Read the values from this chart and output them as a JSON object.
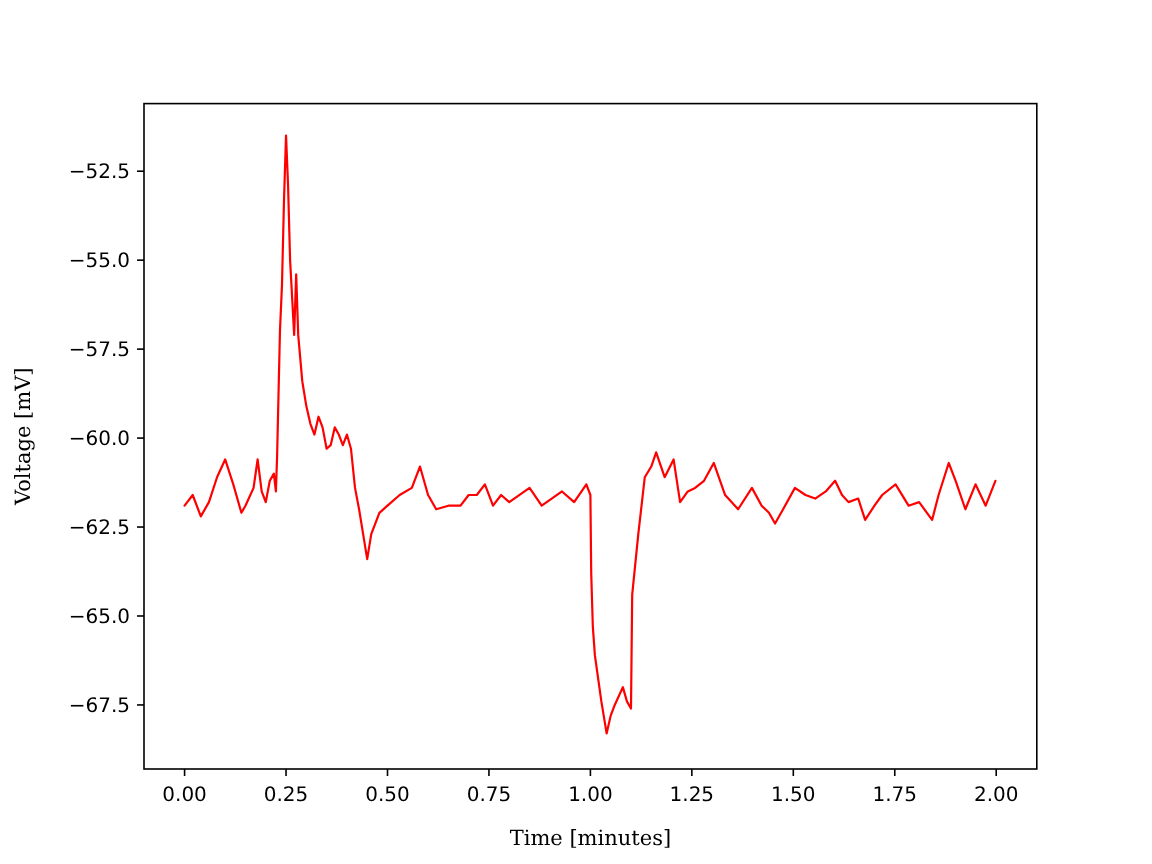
{
  "chart_data": {
    "type": "line",
    "xlabel": "Time [minutes]",
    "ylabel": "Voltage [mV]",
    "xlim": [
      -0.1,
      2.1
    ],
    "ylim": [
      -69.3,
      -50.6
    ],
    "xticks": [
      {
        "value": 0,
        "label": "0.00"
      },
      {
        "value": 0.25,
        "label": "0.25"
      },
      {
        "value": 0.5,
        "label": "0.50"
      },
      {
        "value": 0.75,
        "label": "0.75"
      },
      {
        "value": 1,
        "label": "1.00"
      },
      {
        "value": 1.25,
        "label": "1.25"
      },
      {
        "value": 1.5,
        "label": "1.50"
      },
      {
        "value": 1.75,
        "label": "1.75"
      },
      {
        "value": 2,
        "label": "2.00"
      }
    ],
    "yticks": [
      {
        "value": -52.5,
        "label": "−52.5"
      },
      {
        "value": -55,
        "label": "−55.0"
      },
      {
        "value": -57.5,
        "label": "−57.5"
      },
      {
        "value": -60,
        "label": "−60.0"
      },
      {
        "value": -62.5,
        "label": "−62.5"
      },
      {
        "value": -65,
        "label": "−65.0"
      },
      {
        "value": -67.5,
        "label": "−67.5"
      }
    ],
    "grid": false,
    "series": [
      {
        "color": "#ff0000",
        "x": [
          0,
          0.02,
          0.04,
          0.06,
          0.08,
          0.1,
          0.12,
          0.14,
          0.15,
          0.17,
          0.18,
          0.19,
          0.2,
          0.21,
          0.22,
          0.225,
          0.228,
          0.235,
          0.24,
          0.245,
          0.25,
          0.255,
          0.26,
          0.27,
          0.275,
          0.28,
          0.29,
          0.3,
          0.31,
          0.32,
          0.33,
          0.34,
          0.35,
          0.36,
          0.37,
          0.38,
          0.39,
          0.4,
          0.41,
          0.42,
          0.43,
          0.44,
          0.45,
          0.46,
          0.48,
          0.5,
          0.53,
          0.56,
          0.58,
          0.6,
          0.62,
          0.65,
          0.68,
          0.7,
          0.72,
          0.74,
          0.76,
          0.78,
          0.8,
          0.85,
          0.88,
          0.93,
          0.96,
          0.99,
          1.0,
          1.002,
          1.006,
          1.011,
          1.027,
          1.04,
          1.05,
          1.06,
          1.08,
          1.09,
          1.1,
          1.103,
          1.118,
          1.134,
          1.15,
          1.162,
          1.183,
          1.205,
          1.221,
          1.24,
          1.258,
          1.28,
          1.304,
          1.332,
          1.364,
          1.398,
          1.422,
          1.44,
          1.455,
          1.47,
          1.504,
          1.53,
          1.554,
          1.58,
          1.603,
          1.62,
          1.636,
          1.66,
          1.677,
          1.7,
          1.719,
          1.752,
          1.784,
          1.81,
          1.842,
          1.858,
          1.883,
          1.9,
          1.924,
          1.949,
          1.974,
          1.998
        ],
        "values": [
          -61.9,
          -61.6,
          -62.2,
          -61.8,
          -61.1,
          -60.6,
          -61.3,
          -62.1,
          -61.9,
          -61.4,
          -60.6,
          -61.5,
          -61.8,
          -61.2,
          -61.0,
          -61.5,
          -60.5,
          -57.0,
          -55.7,
          -53.3,
          -51.5,
          -52.9,
          -55.0,
          -57.1,
          -55.4,
          -57.1,
          -58.4,
          -59.1,
          -59.6,
          -59.9,
          -59.4,
          -59.7,
          -60.3,
          -60.2,
          -59.7,
          -59.9,
          -60.2,
          -59.9,
          -60.3,
          -61.4,
          -62.0,
          -62.7,
          -63.4,
          -62.7,
          -62.1,
          -61.9,
          -61.6,
          -61.4,
          -60.8,
          -61.6,
          -62.0,
          -61.9,
          -61.9,
          -61.6,
          -61.6,
          -61.3,
          -61.9,
          -61.6,
          -61.8,
          -61.4,
          -61.9,
          -61.5,
          -61.8,
          -61.3,
          -61.6,
          -63.8,
          -65.3,
          -66.1,
          -67.4,
          -68.3,
          -67.8,
          -67.5,
          -67.0,
          -67.4,
          -67.6,
          -64.4,
          -62.7,
          -61.1,
          -60.8,
          -60.4,
          -61.1,
          -60.6,
          -61.8,
          -61.5,
          -61.4,
          -61.2,
          -60.7,
          -61.6,
          -62.0,
          -61.4,
          -61.9,
          -62.1,
          -62.4,
          -62.1,
          -61.4,
          -61.6,
          -61.7,
          -61.5,
          -61.2,
          -61.6,
          -61.8,
          -61.7,
          -62.3,
          -61.9,
          -61.6,
          -61.3,
          -61.9,
          -61.8,
          -62.3,
          -61.6,
          -60.7,
          -61.2,
          -62.0,
          -61.3,
          -61.9,
          -61.2
        ]
      }
    ]
  }
}
